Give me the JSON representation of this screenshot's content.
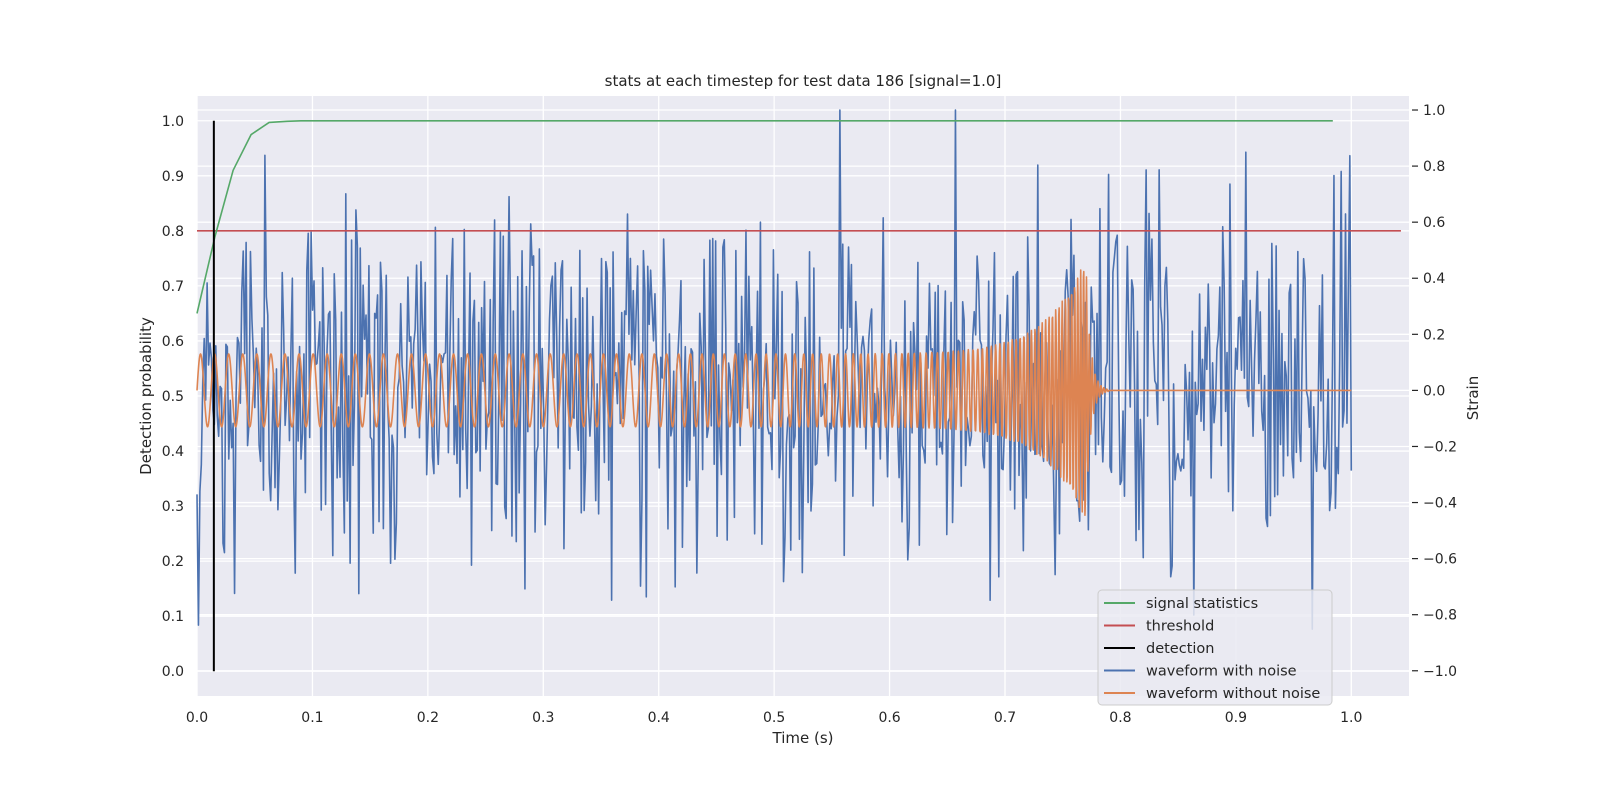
{
  "chart_data": {
    "type": "line",
    "title": "stats at each timestep for test data 186 [signal=1.0]",
    "xlabel": "Time (s)",
    "ylabel": "Detection probability",
    "y2label": "Strain",
    "xlim": [
      0.0,
      1.05
    ],
    "ylim": [
      -0.045,
      1.045
    ],
    "y2lim": [
      -1.09,
      1.05
    ],
    "xticks": [
      "0.0",
      "0.1",
      "0.2",
      "0.3",
      "0.4",
      "0.5",
      "0.6",
      "0.7",
      "0.8",
      "0.9",
      "1.0"
    ],
    "yticks": [
      "0.0",
      "0.1",
      "0.2",
      "0.3",
      "0.4",
      "0.5",
      "0.6",
      "0.7",
      "0.8",
      "0.9",
      "1.0"
    ],
    "y2ticks": [
      "−1.0",
      "−0.8",
      "−0.6",
      "−0.4",
      "−0.2",
      "0.0",
      "0.2",
      "0.4",
      "0.6",
      "0.8",
      "1.0"
    ],
    "grid": true,
    "legend_position": "lower-right",
    "colors": {
      "background": "#eaeaf2",
      "grid": "#ffffff",
      "signal": "#55a868",
      "threshold": "#c44e52",
      "detection": "#000000",
      "noisy": "#4c72b0",
      "clean": "#dd8452"
    },
    "series": [
      {
        "name": "signal statistics",
        "axis": "left",
        "x": [
          0.0,
          0.0156,
          0.0313,
          0.0469,
          0.0625,
          0.0781,
          0.09,
          0.2,
          0.5,
          0.8,
          0.984
        ],
        "y": [
          0.65,
          0.79,
          0.91,
          0.975,
          0.997,
          0.999,
          1.0,
          1.0,
          1.0,
          1.0,
          1.0
        ]
      },
      {
        "name": "threshold",
        "axis": "left",
        "x": [
          0.0,
          1.043
        ],
        "y": [
          0.8,
          0.8
        ]
      },
      {
        "name": "detection",
        "axis": "left",
        "x": [
          0.0146,
          0.0146
        ],
        "y": [
          0.0,
          1.0
        ]
      },
      {
        "name": "waveform with noise",
        "axis": "right",
        "generated": "noise",
        "x_range": [
          0.0,
          1.0
        ],
        "samples": 800,
        "amplitude_std": 0.34,
        "peak_min": -1.0,
        "peak_max": 1.0
      },
      {
        "name": "waveform without noise",
        "axis": "right",
        "generated": "chirp",
        "x_range": [
          0.0,
          1.0
        ],
        "start_frequency_hz": 82,
        "end_frequency_hz": 400,
        "start_amplitude": 0.13,
        "peak_amplitude": 0.47,
        "merger_time": 0.77,
        "ringdown_end": 0.79
      }
    ]
  }
}
